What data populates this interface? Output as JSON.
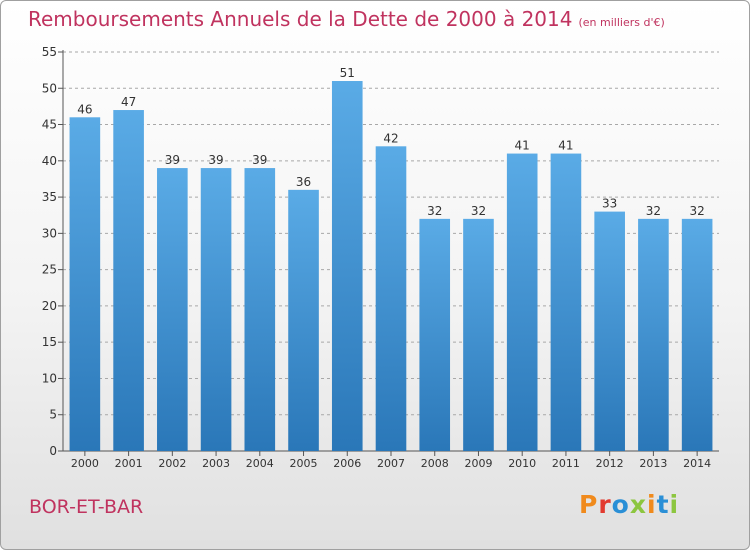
{
  "header": {
    "title": "Remboursements Annuels de la Dette de 2000 à 2014",
    "unit": "(en milliers d'€)"
  },
  "footer": {
    "commune": "BOR-ET-BAR",
    "logo": "Proxiti",
    "logo_colors": [
      "#f08a1c",
      "#e23a2f",
      "#2a8fd6",
      "#8cc63f",
      "#f08a1c",
      "#2a8fd6",
      "#8cc63f"
    ]
  },
  "colors": {
    "bar_top": "#5aabe6",
    "bar_bottom": "#2a77b8",
    "title": "#c0335f",
    "grid": "#a8a8a8"
  },
  "chart_data": {
    "type": "bar",
    "title": "Remboursements Annuels de la Dette de 2000 à 2014",
    "categories": [
      "2000",
      "2001",
      "2002",
      "2003",
      "2004",
      "2005",
      "2006",
      "2007",
      "2008",
      "2009",
      "2010",
      "2011",
      "2012",
      "2013",
      "2014"
    ],
    "values": [
      46,
      47,
      39,
      39,
      39,
      36,
      51,
      42,
      32,
      32,
      41,
      41,
      33,
      32,
      32
    ],
    "ylim": [
      0,
      55
    ],
    "yticks": [
      0,
      5,
      10,
      15,
      20,
      25,
      30,
      35,
      40,
      45,
      50,
      55
    ],
    "grid": true,
    "xlabel": "",
    "ylabel": ""
  }
}
